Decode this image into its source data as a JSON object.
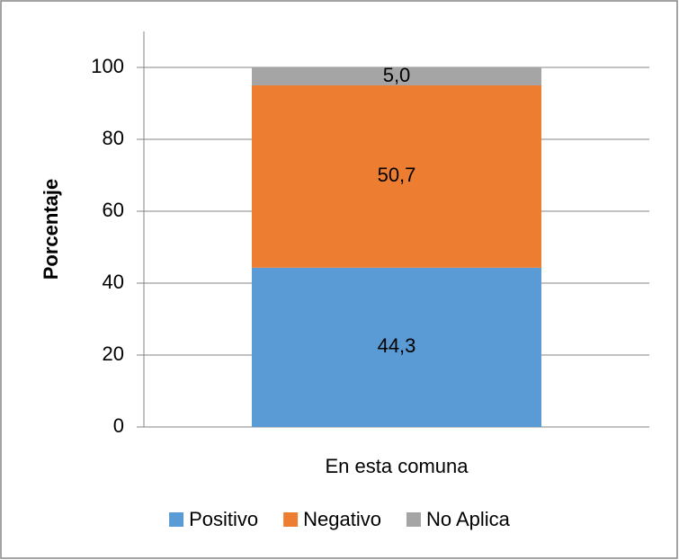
{
  "chart_data": {
    "type": "stacked_bar",
    "y_label": "Porcentaje",
    "categories": [
      "En esta comuna"
    ],
    "series": [
      {
        "name": "Positivo",
        "color": "#5b9bd5",
        "values": [
          44.3
        ],
        "value_labels": [
          "44,3"
        ]
      },
      {
        "name": "Negativo",
        "color": "#ed7d31",
        "values": [
          50.7
        ],
        "value_labels": [
          "50,7"
        ]
      },
      {
        "name": "No Aplica",
        "color": "#a5a5a5",
        "values": [
          5.0
        ],
        "value_labels": [
          "5,0"
        ]
      }
    ],
    "ylim": [
      0,
      110
    ],
    "yticks": [
      0,
      20,
      40,
      60,
      80,
      100
    ],
    "grid": true,
    "legend": "bottom"
  }
}
